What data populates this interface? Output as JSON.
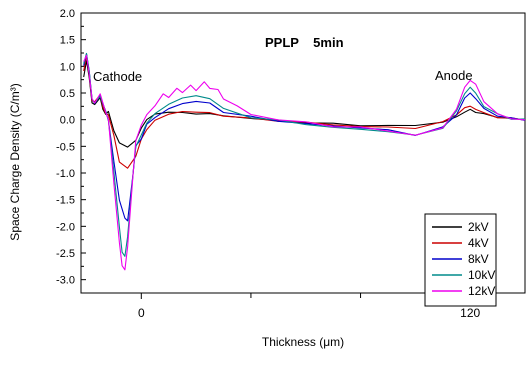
{
  "chart_data": {
    "type": "line",
    "title": "PPLP    5min",
    "xlabel": "Thickness (μm)",
    "ylabel": "Space Charge Density (C/m³)",
    "xlim": [
      -22,
      140
    ],
    "ylim": [
      -3.25,
      2.0
    ],
    "yticks": [
      2.0,
      1.5,
      1.0,
      0.5,
      0.0,
      -0.5,
      -1.0,
      -1.5,
      -2.0,
      -2.5,
      -3.0
    ],
    "ytick_labels": [
      "2.0",
      "1.5",
      "1.0",
      "0.5",
      "0.0",
      "-0.5",
      "-1.0",
      "-1.5",
      "-2.0",
      "-2.5",
      "-3.0"
    ],
    "xticks_labeled": [
      0,
      120
    ],
    "xtick_labels": [
      "0",
      "120"
    ],
    "xticks_minor": [
      40,
      80
    ],
    "annotations": [
      {
        "text": "Cathode",
        "x": -7,
        "y": 0.9
      },
      {
        "text": "Anode",
        "x": 115,
        "y": 0.9
      }
    ],
    "legend_position": "bottom-right",
    "grid": false,
    "series": [
      {
        "name": "2kV",
        "color": "#000000",
        "x": [
          -21,
          -20,
          -19,
          -18,
          -17,
          -15,
          -14,
          -13,
          -12,
          -10,
          -8,
          -5,
          -2,
          0,
          2,
          5,
          10,
          15,
          20,
          25,
          30,
          40,
          50,
          60,
          70,
          80,
          90,
          100,
          110,
          115,
          118,
          120,
          122,
          125,
          130,
          135,
          140
        ],
        "y": [
          0.8,
          1.1,
          0.8,
          0.3,
          0.3,
          0.4,
          0.2,
          0.1,
          0.15,
          -0.2,
          -0.45,
          -0.5,
          -0.4,
          -0.15,
          0.0,
          0.1,
          0.15,
          0.12,
          0.12,
          0.1,
          0.08,
          0.02,
          -0.02,
          -0.05,
          -0.08,
          -0.1,
          -0.12,
          -0.1,
          -0.05,
          0.05,
          0.15,
          0.18,
          0.15,
          0.1,
          0.05,
          0.02,
          0.0
        ]
      },
      {
        "name": "4kV",
        "color": "#cc0000",
        "x": [
          -21,
          -20,
          -19,
          -18,
          -17,
          -15,
          -14,
          -13,
          -12,
          -10,
          -8,
          -5,
          -2,
          0,
          2,
          5,
          10,
          15,
          20,
          25,
          30,
          40,
          50,
          60,
          70,
          80,
          90,
          100,
          110,
          115,
          118,
          120,
          122,
          125,
          130,
          135,
          140
        ],
        "y": [
          0.9,
          1.2,
          0.85,
          0.35,
          0.35,
          0.45,
          0.25,
          0.1,
          0.1,
          -0.3,
          -0.8,
          -0.9,
          -0.7,
          -0.35,
          -0.2,
          0.0,
          0.1,
          0.15,
          0.15,
          0.12,
          0.08,
          0.02,
          -0.02,
          -0.05,
          -0.1,
          -0.12,
          -0.15,
          -0.15,
          -0.05,
          0.1,
          0.22,
          0.25,
          0.2,
          0.12,
          0.05,
          0.02,
          0.0
        ]
      },
      {
        "name": "8kV",
        "color": "#0000cc",
        "x": [
          -21,
          -20,
          -19,
          -18,
          -17,
          -15,
          -14,
          -13,
          -12,
          -10,
          -8,
          -6,
          -5,
          -3,
          -2,
          0,
          2,
          5,
          10,
          15,
          20,
          25,
          30,
          40,
          50,
          60,
          70,
          80,
          90,
          100,
          110,
          115,
          118,
          120,
          122,
          125,
          130,
          135,
          140
        ],
        "y": [
          1.0,
          1.25,
          0.9,
          0.4,
          0.3,
          0.45,
          0.3,
          0.15,
          0.0,
          -0.8,
          -1.5,
          -1.85,
          -1.9,
          -1.0,
          -0.5,
          -0.35,
          -0.1,
          0.05,
          0.2,
          0.3,
          0.35,
          0.3,
          0.15,
          0.05,
          -0.02,
          -0.08,
          -0.12,
          -0.15,
          -0.2,
          -0.28,
          -0.15,
          0.1,
          0.4,
          0.5,
          0.4,
          0.2,
          0.08,
          0.02,
          0.0
        ]
      },
      {
        "name": "10kV",
        "color": "#008b8b",
        "x": [
          -21,
          -20,
          -19,
          -18,
          -17,
          -15,
          -14,
          -13,
          -12,
          -10,
          -8,
          -7,
          -6,
          -5,
          -3,
          -2,
          0,
          2,
          5,
          10,
          15,
          20,
          25,
          30,
          40,
          50,
          60,
          70,
          80,
          90,
          100,
          110,
          115,
          118,
          120,
          122,
          125,
          130,
          135,
          140
        ],
        "y": [
          1.05,
          1.25,
          0.9,
          0.4,
          0.3,
          0.45,
          0.3,
          0.15,
          0.0,
          -1.0,
          -2.0,
          -2.5,
          -2.55,
          -2.2,
          -1.0,
          -0.5,
          -0.3,
          -0.05,
          0.1,
          0.3,
          0.4,
          0.45,
          0.4,
          0.2,
          0.05,
          -0.02,
          -0.08,
          -0.15,
          -0.18,
          -0.22,
          -0.3,
          -0.15,
          0.15,
          0.5,
          0.6,
          0.5,
          0.25,
          0.1,
          0.02,
          0.0
        ]
      },
      {
        "name": "12kV",
        "color": "#ee00ee",
        "x": [
          -21,
          -20,
          -19,
          -18,
          -17,
          -15,
          -14,
          -13,
          -12,
          -10,
          -8,
          -7,
          -6,
          -5,
          -3,
          -2,
          0,
          2,
          5,
          8,
          10,
          13,
          15,
          18,
          20,
          23,
          25,
          28,
          30,
          35,
          40,
          50,
          60,
          70,
          80,
          90,
          100,
          110,
          115,
          118,
          120,
          122,
          125,
          130,
          135,
          140
        ],
        "y": [
          1.1,
          1.2,
          0.85,
          0.4,
          0.3,
          0.5,
          0.3,
          0.15,
          0.0,
          -1.2,
          -2.3,
          -2.75,
          -2.8,
          -2.4,
          -1.0,
          -0.4,
          -0.1,
          0.1,
          0.25,
          0.5,
          0.4,
          0.6,
          0.5,
          0.65,
          0.55,
          0.7,
          0.6,
          0.55,
          0.4,
          0.25,
          0.1,
          0.0,
          -0.05,
          -0.12,
          -0.15,
          -0.2,
          -0.3,
          -0.15,
          0.2,
          0.6,
          0.75,
          0.65,
          0.35,
          0.1,
          0.02,
          0.0
        ]
      }
    ]
  }
}
